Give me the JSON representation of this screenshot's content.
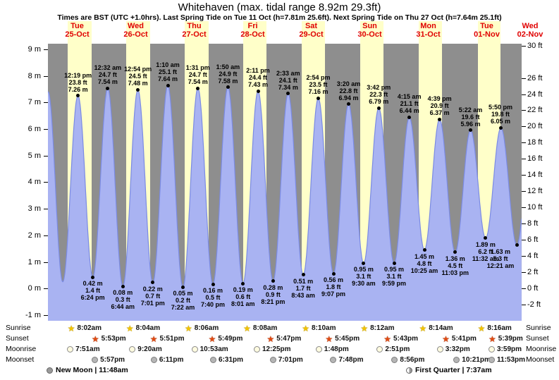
{
  "title": "Whitehaven (max. tidal range 8.92m 29.3ft)",
  "subtitle": "Times are BST (UTC +1.0hrs). Last Spring Tide on Tue 11 Oct (h=7.81m 25.6ft). Next Spring Tide on Thu 27 Oct (h=7.64m 25.1ft)",
  "chart_data": {
    "type": "area",
    "title": "Whitehaven (max. tidal range 8.92m 29.3ft)",
    "ylabel_left_unit": "m",
    "ylabel_right_unit": "ft",
    "ylim_m": [
      -1.2,
      9.2
    ],
    "left_ticks_m": [
      9,
      8,
      7,
      6,
      5,
      4,
      3,
      2,
      1,
      0,
      -1
    ],
    "right_ticks_ft": [
      30,
      26,
      24,
      22,
      20,
      18,
      16,
      14,
      12,
      10,
      8,
      6,
      4,
      2,
      0,
      -2
    ],
    "days": [
      {
        "dow": "Tue",
        "date": "25-Oct"
      },
      {
        "dow": "Wed",
        "date": "26-Oct"
      },
      {
        "dow": "Thu",
        "date": "27-Oct"
      },
      {
        "dow": "Fri",
        "date": "28-Oct"
      },
      {
        "dow": "Sat",
        "date": "29-Oct"
      },
      {
        "dow": "Sun",
        "date": "30-Oct"
      },
      {
        "dow": "Mon",
        "date": "31-Oct"
      },
      {
        "dow": "Tue",
        "date": "01-Nov"
      },
      {
        "dow": "Wed",
        "date": "02-Nov"
      }
    ],
    "tide_events": [
      {
        "day": 0,
        "type": "H",
        "time": "12:19 pm",
        "ft": "23.8 ft",
        "m": "7.26 m"
      },
      {
        "day": 0,
        "type": "L",
        "time": "6:24 pm",
        "ft": "1.4 ft",
        "m": "0.42 m"
      },
      {
        "day": 1,
        "type": "H",
        "time": "12:32 am",
        "ft": "24.7 ft",
        "m": "7.54 m"
      },
      {
        "day": 1,
        "type": "L",
        "time": "6:44 am",
        "ft": "0.3 ft",
        "m": "0.08 m"
      },
      {
        "day": 1,
        "type": "H",
        "time": "12:54 pm",
        "ft": "24.5 ft",
        "m": "7.48 m"
      },
      {
        "day": 1,
        "type": "L",
        "time": "7:01 pm",
        "ft": "0.7 ft",
        "m": "0.22 m"
      },
      {
        "day": 2,
        "type": "H",
        "time": "1:10 am",
        "ft": "25.1 ft",
        "m": "7.64 m"
      },
      {
        "day": 2,
        "type": "L",
        "time": "7:22 am",
        "ft": "0.2 ft",
        "m": "0.05 m"
      },
      {
        "day": 2,
        "type": "H",
        "time": "1:31 pm",
        "ft": "24.7 ft",
        "m": "7.54 m"
      },
      {
        "day": 2,
        "type": "L",
        "time": "7:40 pm",
        "ft": "0.5 ft",
        "m": "0.16 m"
      },
      {
        "day": 3,
        "type": "H",
        "time": "1:50 am",
        "ft": "24.9 ft",
        "m": "7.58 m"
      },
      {
        "day": 3,
        "type": "L",
        "time": "8:01 am",
        "ft": "0.6 ft",
        "m": "0.19 m"
      },
      {
        "day": 3,
        "type": "H",
        "time": "2:11 pm",
        "ft": "24.4 ft",
        "m": "7.43 m"
      },
      {
        "day": 3,
        "type": "L",
        "time": "8:21 pm",
        "ft": "0.9 ft",
        "m": "0.28 m"
      },
      {
        "day": 4,
        "type": "H",
        "time": "2:33 am",
        "ft": "24.1 ft",
        "m": "7.34 m"
      },
      {
        "day": 4,
        "type": "L",
        "time": "8:43 am",
        "ft": "1.7 ft",
        "m": "0.51 m"
      },
      {
        "day": 4,
        "type": "H",
        "time": "2:54 pm",
        "ft": "23.5 ft",
        "m": "7.16 m"
      },
      {
        "day": 4,
        "type": "L",
        "time": "9:07 pm",
        "ft": "1.8 ft",
        "m": "0.56 m"
      },
      {
        "day": 5,
        "type": "H",
        "time": "3:20 am",
        "ft": "22.8 ft",
        "m": "6.94 m"
      },
      {
        "day": 5,
        "type": "L",
        "time": "9:30 am",
        "ft": "3.1 ft",
        "m": "0.95 m"
      },
      {
        "day": 5,
        "type": "H",
        "time": "3:42 pm",
        "ft": "22.3 ft",
        "m": "6.79 m"
      },
      {
        "day": 5,
        "type": "L",
        "time": "9:59 pm",
        "ft": "3.1 ft",
        "m": "0.95 m"
      },
      {
        "day": 6,
        "type": "H",
        "time": "4:15 am",
        "ft": "21.1 ft",
        "m": "6.44 m"
      },
      {
        "day": 6,
        "type": "L",
        "time": "10:25 am",
        "ft": "4.8 ft",
        "m": "1.45 m"
      },
      {
        "day": 6,
        "type": "H",
        "time": "4:39 pm",
        "ft": "20.9 ft",
        "m": "6.37 m"
      },
      {
        "day": 6,
        "type": "L",
        "time": "11:03 pm",
        "ft": "4.5 ft",
        "m": "1.36 m"
      },
      {
        "day": 7,
        "type": "H",
        "time": "5:22 am",
        "ft": "19.6 ft",
        "m": "5.96 m"
      },
      {
        "day": 7,
        "type": "L",
        "time": "11:32 am",
        "ft": "6.2 ft",
        "m": "1.89 m"
      },
      {
        "day": 7,
        "type": "H",
        "time": "5:50 pm",
        "ft": "19.8 ft",
        "m": "6.05 m"
      },
      {
        "day": 8,
        "type": "L",
        "time": "12:21 am",
        "ft": "5.3 ft",
        "m": "1.63 m"
      }
    ],
    "colors": {
      "night_band": "#8e8e8e",
      "day_band": "#ffffc9",
      "tide_fill": "#a9b3f2",
      "tide_stroke": "#7b8be4",
      "day_label": "#e00000"
    }
  },
  "astro": {
    "rows": [
      {
        "label": "Sunrise",
        "icon": "sunrise-star",
        "times": [
          "8:02am",
          "8:04am",
          "8:06am",
          "8:08am",
          "8:10am",
          "8:12am",
          "8:14am",
          "8:16am"
        ]
      },
      {
        "label": "Sunset",
        "icon": "sunset-star",
        "times": [
          "5:53pm",
          "5:51pm",
          "5:49pm",
          "5:47pm",
          "5:45pm",
          "5:43pm",
          "5:41pm",
          "5:39pm"
        ]
      },
      {
        "label": "Moonrise",
        "icon": "moonrise-circle",
        "times": [
          "7:51am",
          "9:20am",
          "10:53am",
          "12:25pm",
          "1:48pm",
          "2:51pm",
          "3:32pm",
          "3:59pm"
        ]
      },
      {
        "label": "Moonset",
        "icon": "moonset-circle",
        "times": [
          "5:57pm",
          "6:11pm",
          "6:31pm",
          "7:01pm",
          "7:48pm",
          "8:56pm",
          "10:21pm",
          "11:53pm"
        ]
      }
    ],
    "notes": [
      {
        "icon": "new-moon",
        "text": "New Moon | 11:48am"
      },
      {
        "icon": "first-quarter",
        "text": "First Quarter | 7:37am"
      }
    ]
  }
}
